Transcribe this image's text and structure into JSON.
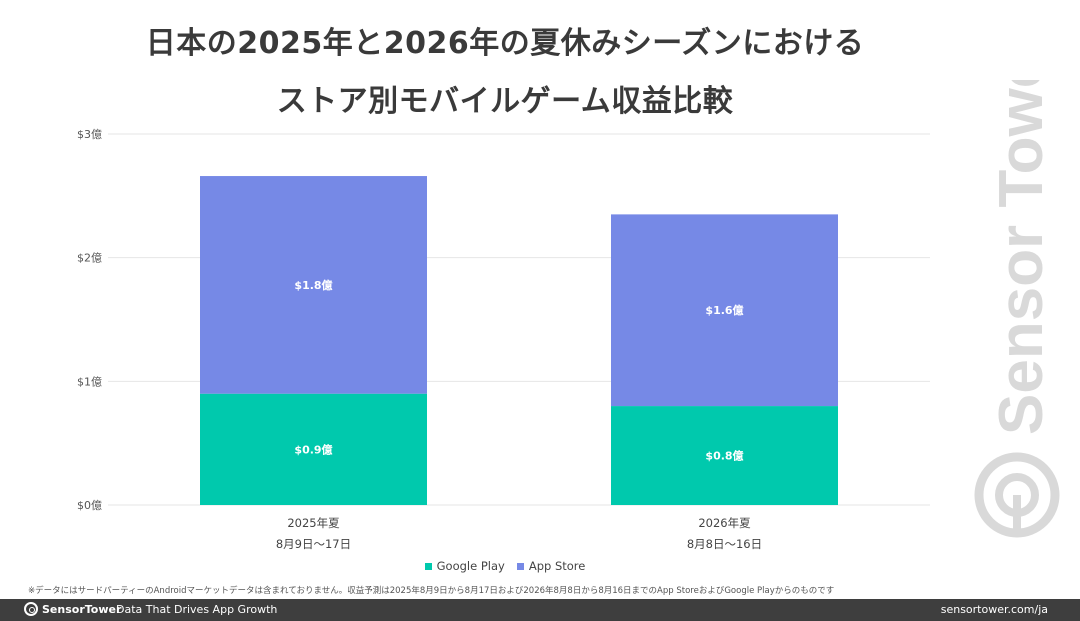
{
  "title_line1": "日本の2025年と2026年の夏休みシーズンにおける",
  "title_line2": "ストア別モバイルゲーム収益比較",
  "chart_data": {
    "type": "bar",
    "stacked": true,
    "categories": [
      "2025年夏",
      "2026年夏"
    ],
    "category_sublabels": [
      "8月9日〜17日",
      "8月8日〜16日"
    ],
    "series": [
      {
        "name": "Google Play",
        "values": [
          0.9,
          0.8
        ],
        "labels": [
          "$0.9億",
          "$0.8億"
        ],
        "color": "#00c9ad"
      },
      {
        "name": "App Store",
        "values": [
          1.76,
          1.55
        ],
        "labels": [
          "$1.8億",
          "$1.6億"
        ],
        "color": "#7689e6"
      }
    ],
    "ylim": [
      0,
      3
    ],
    "yticks": [
      0,
      1,
      2,
      3
    ],
    "ytick_labels": [
      "$0億",
      "$1億",
      "$2億",
      "$3億"
    ],
    "xlabel": "",
    "ylabel": "",
    "grid": true,
    "legend_position": "bottom"
  },
  "footnote": "※データにはサードパーティーのAndroidマーケットデータは含まれておりません。収益予測は2025年8月9日から8月17日および2026年8月8日から8月16日までのApp StoreおよびGoogle Playからのものです",
  "footer": {
    "brand": "SensorTower",
    "tagline": "Data That Drives App Growth",
    "url": "sensortower.com/ja"
  },
  "watermark": {
    "text": "Sensor Tower",
    "icon": "sensor-tower-logo-icon"
  }
}
